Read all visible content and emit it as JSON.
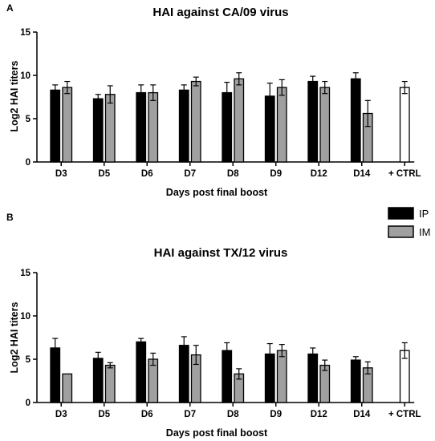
{
  "legend": [
    {
      "name": "IP",
      "color": "#000000"
    },
    {
      "name": "IM",
      "color": "#a0a0a0"
    }
  ],
  "ctrl_color": "#ffffff",
  "chart_data": [
    {
      "panel": "A",
      "type": "bar",
      "title": "HAI against CA/09 virus",
      "xlabel": "Days post final boost",
      "ylabel": "Log2 HAI titers",
      "ylim": [
        0,
        15
      ],
      "yticks": [
        0,
        5,
        10,
        15
      ],
      "categories": [
        "D3",
        "D5",
        "D6",
        "D7",
        "D8",
        "D9",
        "D12",
        "D14",
        "+ CTRL"
      ],
      "series": [
        {
          "name": "IP",
          "values": [
            8.3,
            7.3,
            8.0,
            8.3,
            8.0,
            7.6,
            9.3,
            9.6,
            null
          ],
          "errors": [
            0.6,
            0.5,
            0.9,
            0.6,
            1.2,
            1.5,
            0.6,
            0.7,
            null
          ]
        },
        {
          "name": "IM",
          "values": [
            8.6,
            7.8,
            8.0,
            9.3,
            9.6,
            8.6,
            8.6,
            5.6,
            null
          ],
          "errors": [
            0.7,
            1.0,
            0.9,
            0.5,
            0.7,
            0.9,
            0.7,
            1.5,
            null
          ]
        },
        {
          "name": "+ CTRL",
          "values": [
            null,
            null,
            null,
            null,
            null,
            null,
            null,
            null,
            8.6
          ],
          "errors": [
            null,
            null,
            null,
            null,
            null,
            null,
            null,
            null,
            0.7
          ]
        }
      ]
    },
    {
      "panel": "B",
      "type": "bar",
      "title": "HAI against TX/12 virus",
      "xlabel": "Days post final boost",
      "ylabel": "Log2 HAI titers",
      "ylim": [
        0,
        15
      ],
      "yticks": [
        0,
        5,
        10,
        15
      ],
      "categories": [
        "D3",
        "D5",
        "D6",
        "D7",
        "D8",
        "D9",
        "D12",
        "D14",
        "+ CTRL"
      ],
      "series": [
        {
          "name": "IP",
          "values": [
            6.3,
            5.1,
            7.0,
            6.6,
            6.0,
            5.6,
            5.6,
            4.9,
            null
          ],
          "errors": [
            1.1,
            0.7,
            0.4,
            1.0,
            0.9,
            1.2,
            0.7,
            0.4,
            null
          ]
        },
        {
          "name": "IM",
          "values": [
            3.3,
            4.3,
            5.0,
            5.5,
            3.3,
            6.0,
            4.3,
            4.0,
            null
          ],
          "errors": [
            0.0,
            0.3,
            0.7,
            1.1,
            0.6,
            0.7,
            0.6,
            0.7,
            null
          ]
        },
        {
          "name": "+ CTRL",
          "values": [
            null,
            null,
            null,
            null,
            null,
            null,
            null,
            null,
            6.0
          ],
          "errors": [
            null,
            null,
            null,
            null,
            null,
            null,
            null,
            null,
            0.9
          ]
        }
      ]
    }
  ]
}
